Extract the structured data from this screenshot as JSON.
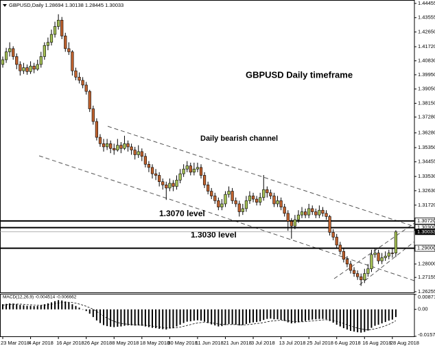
{
  "chart_data": {
    "type": "candlestick",
    "header": "GBPUSD,Daily  1.28694 1.30138 1.28445 1.30033",
    "title": "GBPUSD Daily timeframe",
    "annotations": [
      "Daily bearish channel",
      "1.3070 level",
      "1.3030 level"
    ],
    "categories": [
      "23 Mar 2018",
      null,
      null,
      null,
      null,
      null,
      null,
      null,
      "4 Apr 2018",
      null,
      null,
      null,
      null,
      null,
      null,
      null,
      "16 Apr 2018",
      null,
      null,
      null,
      null,
      null,
      null,
      null,
      "26 Apr 2018",
      null,
      null,
      null,
      null,
      null,
      null,
      null,
      "8 May 2018",
      null,
      null,
      null,
      null,
      null,
      null,
      null,
      "18 May 2018",
      null,
      null,
      null,
      null,
      null,
      null,
      null,
      "30 May 2018",
      null,
      null,
      null,
      null,
      null,
      null,
      null,
      "11 Jun 2018",
      null,
      null,
      null,
      null,
      null,
      null,
      null,
      "21 Jun 2018",
      null,
      null,
      null,
      null,
      null,
      null,
      null,
      "3 Jul 2018",
      null,
      null,
      null,
      null,
      null,
      null,
      null,
      "13 Jul 2018",
      null,
      null,
      null,
      null,
      null,
      null,
      null,
      "25 Jul 2018",
      null,
      null,
      null,
      null,
      null,
      null,
      null,
      "6 Aug 2018",
      null,
      null,
      null,
      null,
      null,
      null,
      null,
      "16 Aug 2018",
      null,
      null,
      null,
      null,
      null,
      null,
      null,
      "28 Aug 2018",
      null
    ],
    "ohlc": [
      [
        1.406,
        1.411,
        1.404,
        1.409
      ],
      [
        1.409,
        1.4165,
        1.407,
        1.414
      ],
      [
        1.414,
        1.42,
        1.411,
        1.416
      ],
      [
        1.416,
        1.4175,
        1.409,
        1.411
      ],
      [
        1.411,
        1.413,
        1.403,
        1.406
      ],
      [
        1.406,
        1.408,
        1.399,
        1.402
      ],
      [
        1.402,
        1.407,
        1.4,
        1.404
      ],
      [
        1.404,
        1.406,
        1.3995,
        1.4015
      ],
      [
        1.4015,
        1.408,
        1.4,
        1.405
      ],
      [
        1.405,
        1.407,
        1.4005,
        1.403
      ],
      [
        1.403,
        1.409,
        1.402,
        1.406
      ],
      [
        1.406,
        1.414,
        1.404,
        1.411
      ],
      [
        1.411,
        1.42,
        1.409,
        1.418
      ],
      [
        1.418,
        1.423,
        1.415,
        1.42
      ],
      [
        1.42,
        1.428,
        1.418,
        1.425
      ],
      [
        1.425,
        1.433,
        1.423,
        1.43
      ],
      [
        1.43,
        1.4377,
        1.428,
        1.434
      ],
      [
        1.434,
        1.436,
        1.422,
        1.424
      ],
      [
        1.424,
        1.426,
        1.414,
        1.416
      ],
      [
        1.416,
        1.42,
        1.412,
        1.414
      ],
      [
        1.414,
        1.415,
        1.399,
        1.402
      ],
      [
        1.402,
        1.404,
        1.396,
        1.398
      ],
      [
        1.398,
        1.401,
        1.394,
        1.396
      ],
      [
        1.396,
        1.398,
        1.391,
        1.393
      ],
      [
        1.393,
        1.395,
        1.387,
        1.389
      ],
      [
        1.389,
        1.39,
        1.376,
        1.378
      ],
      [
        1.378,
        1.38,
        1.368,
        1.37
      ],
      [
        1.37,
        1.372,
        1.358,
        1.36
      ],
      [
        1.36,
        1.362,
        1.354,
        1.356
      ],
      [
        1.356,
        1.359,
        1.351,
        1.354
      ],
      [
        1.354,
        1.359,
        1.352,
        1.356
      ],
      [
        1.356,
        1.358,
        1.35,
        1.353
      ],
      [
        1.353,
        1.356,
        1.349,
        1.352
      ],
      [
        1.352,
        1.359,
        1.351,
        1.355
      ],
      [
        1.355,
        1.357,
        1.35,
        1.353
      ],
      [
        1.353,
        1.361,
        1.352,
        1.356
      ],
      [
        1.356,
        1.358,
        1.351,
        1.354
      ],
      [
        1.354,
        1.356,
        1.349,
        1.352
      ],
      [
        1.352,
        1.354,
        1.346,
        1.349
      ],
      [
        1.349,
        1.355,
        1.347,
        1.351
      ],
      [
        1.351,
        1.353,
        1.345,
        1.348
      ],
      [
        1.348,
        1.35,
        1.341,
        1.343
      ],
      [
        1.343,
        1.345,
        1.338,
        1.341
      ],
      [
        1.341,
        1.343,
        1.334,
        1.337
      ],
      [
        1.337,
        1.34,
        1.333,
        1.336
      ],
      [
        1.336,
        1.338,
        1.329,
        1.332
      ],
      [
        1.332,
        1.334,
        1.327,
        1.33
      ],
      [
        1.33,
        1.332,
        1.3205,
        1.328
      ],
      [
        1.328,
        1.334,
        1.326,
        1.331
      ],
      [
        1.331,
        1.333,
        1.326,
        1.329
      ],
      [
        1.329,
        1.336,
        1.327,
        1.333
      ],
      [
        1.333,
        1.34,
        1.331,
        1.337
      ],
      [
        1.337,
        1.343,
        1.335,
        1.34
      ],
      [
        1.34,
        1.345,
        1.338,
        1.342
      ],
      [
        1.342,
        1.344,
        1.336,
        1.338
      ],
      [
        1.338,
        1.344,
        1.336,
        1.34
      ],
      [
        1.34,
        1.344,
        1.338,
        1.341
      ],
      [
        1.341,
        1.343,
        1.334,
        1.336
      ],
      [
        1.336,
        1.338,
        1.328,
        1.33
      ],
      [
        1.33,
        1.332,
        1.324,
        1.326
      ],
      [
        1.326,
        1.328,
        1.321,
        1.323
      ],
      [
        1.323,
        1.325,
        1.318,
        1.32
      ],
      [
        1.32,
        1.322,
        1.314,
        1.316
      ],
      [
        1.316,
        1.321,
        1.314,
        1.318
      ],
      [
        1.318,
        1.326,
        1.316,
        1.324
      ],
      [
        1.324,
        1.329,
        1.322,
        1.326
      ],
      [
        1.326,
        1.328,
        1.318,
        1.32
      ],
      [
        1.32,
        1.322,
        1.316,
        1.318
      ],
      [
        1.318,
        1.32,
        1.31,
        1.313
      ],
      [
        1.313,
        1.318,
        1.311,
        1.315
      ],
      [
        1.315,
        1.323,
        1.313,
        1.32
      ],
      [
        1.32,
        1.326,
        1.318,
        1.323
      ],
      [
        1.323,
        1.325,
        1.319,
        1.321
      ],
      [
        1.321,
        1.323,
        1.317,
        1.319
      ],
      [
        1.319,
        1.325,
        1.317,
        1.322
      ],
      [
        1.322,
        1.3362,
        1.32,
        1.327
      ],
      [
        1.327,
        1.329,
        1.322,
        1.325
      ],
      [
        1.325,
        1.327,
        1.321,
        1.323
      ],
      [
        1.323,
        1.325,
        1.316,
        1.318
      ],
      [
        1.318,
        1.323,
        1.316,
        1.32
      ],
      [
        1.32,
        1.322,
        1.314,
        1.316
      ],
      [
        1.316,
        1.318,
        1.31,
        1.312
      ],
      [
        1.312,
        1.314,
        1.301,
        1.307
      ],
      [
        1.307,
        1.309,
        1.296,
        1.304
      ],
      [
        1.304,
        1.311,
        1.302,
        1.308
      ],
      [
        1.308,
        1.314,
        1.306,
        1.311
      ],
      [
        1.311,
        1.316,
        1.309,
        1.313
      ],
      [
        1.313,
        1.315,
        1.309,
        1.311
      ],
      [
        1.311,
        1.318,
        1.309,
        1.315
      ],
      [
        1.315,
        1.317,
        1.311,
        1.313
      ],
      [
        1.313,
        1.315,
        1.309,
        1.311
      ],
      [
        1.311,
        1.317,
        1.309,
        1.314
      ],
      [
        1.314,
        1.316,
        1.31,
        1.312
      ],
      [
        1.312,
        1.314,
        1.308,
        1.31
      ],
      [
        1.31,
        1.311,
        1.298,
        1.3
      ],
      [
        1.3,
        1.302,
        1.295,
        1.297
      ],
      [
        1.297,
        1.299,
        1.29,
        1.292
      ],
      [
        1.292,
        1.294,
        1.286,
        1.288
      ],
      [
        1.288,
        1.29,
        1.281,
        1.283
      ],
      [
        1.283,
        1.285,
        1.278,
        1.28
      ],
      [
        1.28,
        1.282,
        1.274,
        1.276
      ],
      [
        1.276,
        1.278,
        1.272,
        1.274
      ],
      [
        1.274,
        1.276,
        1.27,
        1.272
      ],
      [
        1.272,
        1.274,
        1.2662,
        1.27
      ],
      [
        1.27,
        1.277,
        1.268,
        1.274
      ],
      [
        1.274,
        1.28,
        1.272,
        1.277
      ],
      [
        1.277,
        1.289,
        1.275,
        1.286
      ],
      [
        1.286,
        1.29,
        1.284,
        1.287
      ],
      [
        1.287,
        1.289,
        1.28,
        1.282
      ],
      [
        1.282,
        1.287,
        1.28,
        1.284
      ],
      [
        1.284,
        1.288,
        1.282,
        1.285
      ],
      [
        1.285,
        1.289,
        1.283,
        1.287
      ],
      [
        1.287,
        1.29,
        1.284,
        1.28694
      ],
      [
        1.28694,
        1.30138,
        1.28445,
        1.30033
      ]
    ],
    "up_color": "#a4bf55",
    "down_color": "#c0622e",
    "ylim": [
      1.2621,
      1.4467
    ],
    "yticks": [
      1.44455,
      1.43555,
      {
        "value": 1.4265,
        "label": "1.42650"
      },
      {
        "value": 1.4172,
        "label": "1.41720"
      },
      {
        "value": 1.4083,
        "label": "1.40830"
      },
      {
        "value": 1.3995,
        "label": "1.39950"
      },
      {
        "value": 1.3905,
        "label": "1.39050"
      },
      {
        "value": 1.3815,
        "label": "1.38150"
      },
      {
        "value": 1.3728,
        "label": "1.37280"
      },
      {
        "value": 1.3628,
        "label": "1.36280"
      },
      {
        "value": 1.3535,
        "label": "1.35350"
      },
      1.34455,
      {
        "value": 1.3353,
        "label": "1.33530"
      },
      {
        "value": 1.3263,
        "label": "1.32630"
      },
      {
        "value": 1.3172,
        "label": "1.31720"
      },
      {
        "value": 1.28,
        "label": "1.28000"
      },
      1.27155,
      1.26255
    ],
    "levels": [
      {
        "value": 1.3072,
        "label": "1.30720"
      },
      {
        "value": 1.303,
        "label": "1.30300"
      },
      {
        "value": 1.29,
        "label": "1.29000"
      }
    ],
    "current_price": 1.30033,
    "macd": {
      "type": "bar",
      "label": "MACD(12,26,9) -0.004514 -0.006662",
      "values": [
        0.003,
        0.0032,
        0.0035,
        0.0034,
        0.003,
        0.0026,
        0.0024,
        0.0021,
        0.0021,
        0.0019,
        0.002,
        0.0024,
        0.003,
        0.0035,
        0.0041,
        0.0048,
        0.0054,
        0.0052,
        0.0046,
        0.004,
        0.003,
        0.002,
        0.001,
        0.0,
        -0.001,
        -0.0025,
        -0.0045,
        -0.0065,
        -0.008,
        -0.0092,
        -0.0098,
        -0.0102,
        -0.0104,
        -0.0102,
        -0.01,
        -0.0096,
        -0.0094,
        -0.0094,
        -0.0095,
        -0.0094,
        -0.0096,
        -0.01,
        -0.0104,
        -0.0108,
        -0.011,
        -0.0114,
        -0.0116,
        -0.0118,
        -0.0112,
        -0.0108,
        -0.01,
        -0.009,
        -0.008,
        -0.0072,
        -0.007,
        -0.0066,
        -0.0064,
        -0.0066,
        -0.0072,
        -0.008,
        -0.0088,
        -0.0094,
        -0.01,
        -0.0098,
        -0.0092,
        -0.0086,
        -0.0088,
        -0.009,
        -0.0094,
        -0.0092,
        -0.0086,
        -0.008,
        -0.0076,
        -0.0074,
        -0.007,
        -0.0062,
        -0.0056,
        -0.0054,
        -0.0058,
        -0.0058,
        -0.0062,
        -0.0068,
        -0.0076,
        -0.0082,
        -0.008,
        -0.0076,
        -0.0072,
        -0.0068,
        -0.0064,
        -0.006,
        -0.0058,
        -0.0056,
        -0.0056,
        -0.0058,
        -0.0068,
        -0.0078,
        -0.009,
        -0.01,
        -0.011,
        -0.0118,
        -0.0126,
        -0.013,
        -0.0134,
        -0.0136,
        -0.0132,
        -0.0124,
        -0.0108,
        -0.0096,
        -0.009,
        -0.0082,
        -0.0074,
        -0.0066,
        -0.006,
        -0.004514
      ],
      "signal": [
        0.0025,
        0.0027,
        0.0029,
        0.003,
        0.0031,
        0.0031,
        0.003,
        0.0028,
        0.0027,
        0.0025,
        0.0024,
        0.0024,
        0.0025,
        0.0027,
        0.003,
        0.0033,
        0.0037,
        0.004,
        0.0042,
        0.0042,
        0.004,
        0.0036,
        0.0031,
        0.0025,
        0.0018,
        0.001,
        0.0,
        -0.0012,
        -0.0026,
        -0.0039,
        -0.0051,
        -0.0061,
        -0.007,
        -0.0077,
        -0.0082,
        -0.0085,
        -0.0087,
        -0.0089,
        -0.009,
        -0.0091,
        -0.0092,
        -0.0093,
        -0.0095,
        -0.0098,
        -0.01,
        -0.0103,
        -0.0106,
        -0.0108,
        -0.0109,
        -0.0109,
        -0.0107,
        -0.0104,
        -0.0099,
        -0.0094,
        -0.0089,
        -0.0084,
        -0.008,
        -0.0077,
        -0.0076,
        -0.0077,
        -0.0079,
        -0.0082,
        -0.0086,
        -0.0088,
        -0.0089,
        -0.0089,
        -0.0089,
        -0.0089,
        -0.009,
        -0.0091,
        -0.009,
        -0.0088,
        -0.0086,
        -0.0083,
        -0.0081,
        -0.0077,
        -0.0073,
        -0.0069,
        -0.0067,
        -0.0065,
        -0.0064,
        -0.0065,
        -0.0067,
        -0.007,
        -0.0072,
        -0.0073,
        -0.0073,
        -0.0072,
        -0.007,
        -0.0068,
        -0.0066,
        -0.0064,
        -0.0062,
        -0.0061,
        -0.0062,
        -0.0065,
        -0.007,
        -0.0076,
        -0.0083,
        -0.009,
        -0.0097,
        -0.0104,
        -0.011,
        -0.0115,
        -0.0118,
        -0.012,
        -0.0118,
        -0.0114,
        -0.0109,
        -0.0103,
        -0.0096,
        -0.0088,
        -0.0078,
        -0.006662
      ],
      "ylim": [
        -0.015788,
        0.008719
      ],
      "yticks": [
        0.008719,
        {
          "value": 0,
          "label": "0.00"
        },
        -0.015788
      ]
    }
  }
}
